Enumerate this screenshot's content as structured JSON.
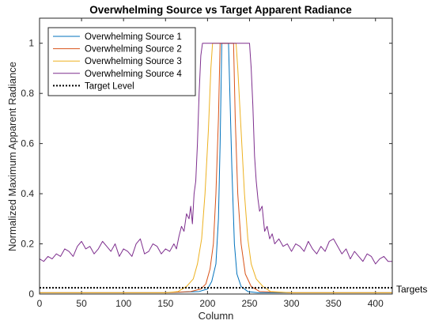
{
  "chart_data": {
    "type": "line",
    "title": "Overwhelming Source vs Target Apparent Radiance",
    "xlabel": "Column",
    "ylabel": "Normalized Maximum Apparent Radiance",
    "xlim": [
      0,
      420
    ],
    "ylim": [
      0,
      1.1
    ],
    "xticks": [
      0,
      50,
      100,
      150,
      200,
      250,
      300,
      350,
      400
    ],
    "yticks": [
      0,
      0.2,
      0.4,
      0.6,
      0.8,
      1
    ],
    "grid": false,
    "legend_position": "top-left",
    "annotation": "Targets",
    "series": [
      {
        "name": "Overwhelming Source 1",
        "color": "#0072BD",
        "x": [
          0,
          150,
          190,
          200,
          205,
          210,
          213,
          215,
          217,
          219,
          221,
          223,
          225,
          229,
          232,
          235,
          240,
          248,
          260,
          300,
          420
        ],
        "y": [
          0.005,
          0.005,
          0.01,
          0.02,
          0.05,
          0.12,
          0.3,
          0.6,
          1.0,
          1.0,
          1.0,
          1.0,
          1.0,
          0.5,
          0.2,
          0.08,
          0.03,
          0.01,
          0.005,
          0.005,
          0.005
        ]
      },
      {
        "name": "Overwhelming Source 2",
        "color": "#D95319",
        "x": [
          0,
          150,
          180,
          192,
          198,
          203,
          207,
          210,
          213,
          215,
          217,
          229,
          231,
          233,
          236,
          240,
          245,
          252,
          262,
          300,
          420
        ],
        "y": [
          0.005,
          0.005,
          0.01,
          0.02,
          0.04,
          0.1,
          0.2,
          0.4,
          0.7,
          1.0,
          1.0,
          1.0,
          1.0,
          0.7,
          0.4,
          0.2,
          0.08,
          0.03,
          0.01,
          0.005,
          0.005
        ]
      },
      {
        "name": "Overwhelming Source 3",
        "color": "#EDB120",
        "x": [
          0,
          150,
          165,
          175,
          183,
          188,
          193,
          197,
          201,
          204,
          206,
          234,
          236,
          240,
          244,
          248,
          252,
          258,
          266,
          275,
          300,
          420
        ],
        "y": [
          0.005,
          0.005,
          0.01,
          0.03,
          0.06,
          0.12,
          0.22,
          0.4,
          0.65,
          0.9,
          1.0,
          1.0,
          0.9,
          0.65,
          0.4,
          0.22,
          0.12,
          0.06,
          0.03,
          0.01,
          0.005,
          0.005
        ]
      },
      {
        "name": "Overwhelming Source 4",
        "color": "#7E2F8E",
        "x": [
          0,
          5,
          10,
          15,
          20,
          25,
          30,
          35,
          40,
          45,
          50,
          55,
          60,
          65,
          70,
          75,
          80,
          85,
          90,
          95,
          100,
          105,
          110,
          115,
          120,
          125,
          130,
          135,
          140,
          145,
          150,
          155,
          160,
          163,
          166,
          169,
          172,
          175,
          178,
          180,
          182,
          184,
          186,
          188,
          190,
          192,
          194,
          250,
          252,
          254,
          256,
          258,
          260,
          262,
          265,
          268,
          271,
          274,
          277,
          280,
          285,
          290,
          295,
          300,
          305,
          310,
          315,
          320,
          325,
          330,
          335,
          340,
          345,
          350,
          355,
          360,
          365,
          370,
          375,
          380,
          385,
          390,
          395,
          400,
          405,
          410,
          415,
          420
        ],
        "y": [
          0.14,
          0.13,
          0.15,
          0.14,
          0.16,
          0.15,
          0.18,
          0.17,
          0.15,
          0.19,
          0.21,
          0.18,
          0.19,
          0.16,
          0.18,
          0.21,
          0.19,
          0.17,
          0.2,
          0.15,
          0.18,
          0.17,
          0.15,
          0.2,
          0.22,
          0.16,
          0.17,
          0.2,
          0.19,
          0.16,
          0.18,
          0.17,
          0.2,
          0.18,
          0.23,
          0.27,
          0.25,
          0.32,
          0.3,
          0.35,
          0.28,
          0.4,
          0.45,
          0.6,
          0.8,
          0.95,
          1.0,
          1.0,
          0.9,
          0.75,
          0.55,
          0.45,
          0.38,
          0.33,
          0.35,
          0.25,
          0.27,
          0.22,
          0.24,
          0.2,
          0.22,
          0.19,
          0.2,
          0.17,
          0.2,
          0.19,
          0.17,
          0.21,
          0.18,
          0.16,
          0.19,
          0.17,
          0.21,
          0.22,
          0.19,
          0.16,
          0.18,
          0.14,
          0.17,
          0.15,
          0.13,
          0.16,
          0.15,
          0.12,
          0.14,
          0.15,
          0.13,
          0.13
        ]
      },
      {
        "name": "Target Level",
        "color": "#000000",
        "dashed": true,
        "x": [
          0,
          420
        ],
        "y": [
          0.025,
          0.025
        ]
      }
    ]
  }
}
